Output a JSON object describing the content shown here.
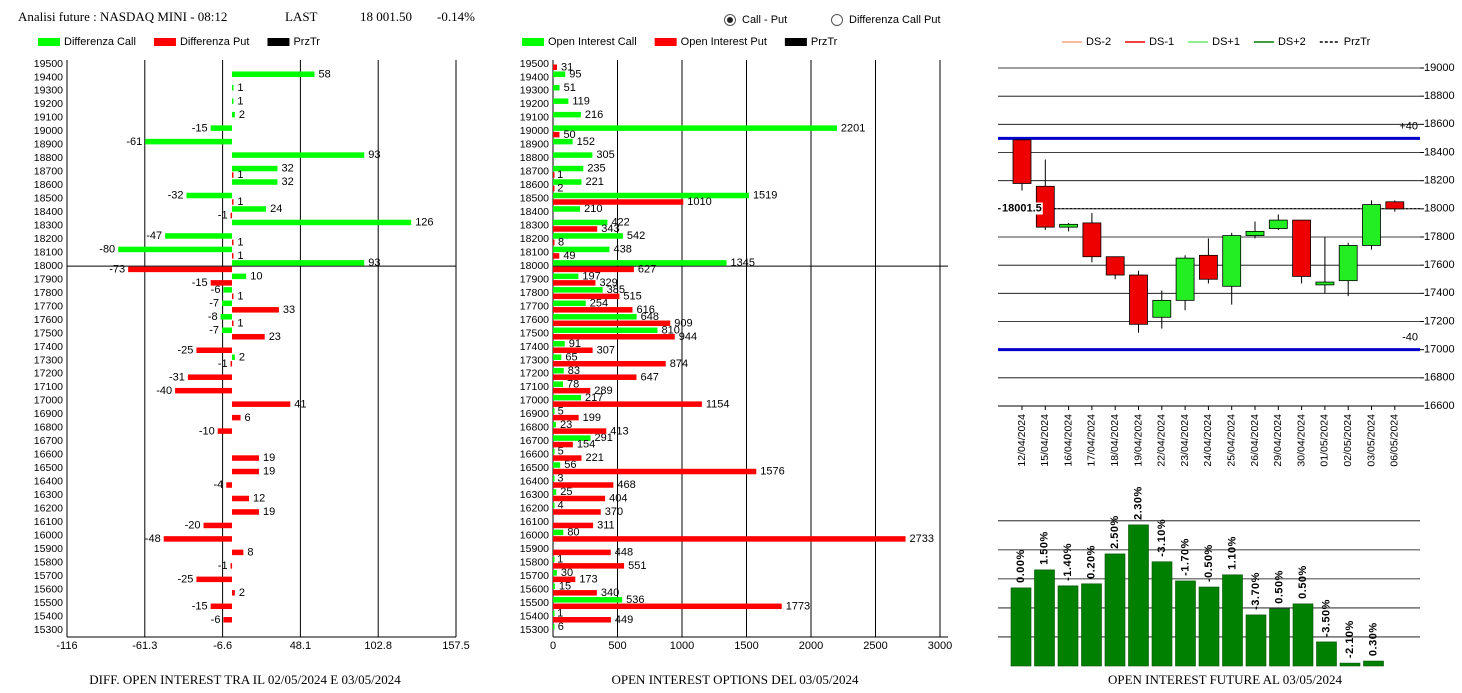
{
  "header": {
    "title": "Analisi future : NASDAQ MINI - 08:12",
    "last_label": "LAST",
    "last": "18 001.50",
    "change": "-0.14%"
  },
  "radios": [
    {
      "label": "Call - Put",
      "selected": true
    },
    {
      "label": "Differenza Call Put",
      "selected": false
    }
  ],
  "chart_data": [
    {
      "type": "hbar",
      "title": "DIFF. OPEN INTEREST TRA IL 02/05/2024 E 03/05/2024",
      "categories": [
        "19500",
        "19400",
        "19300",
        "19200",
        "19100",
        "19000",
        "18900",
        "18800",
        "18700",
        "18600",
        "18500",
        "18400",
        "18300",
        "18200",
        "18100",
        "18000",
        "17900",
        "17800",
        "17700",
        "17600",
        "17500",
        "17400",
        "17300",
        "17200",
        "17100",
        "17000",
        "16900",
        "16800",
        "16700",
        "16600",
        "16500",
        "16400",
        "16300",
        "16200",
        "16100",
        "16000",
        "15900",
        "15800",
        "15700",
        "15600",
        "15500",
        "15400",
        "15300"
      ],
      "series": [
        {
          "name": "Differenza Call",
          "color": "#00ff00",
          "values": [
            null,
            58,
            1,
            1,
            2,
            -15,
            -61,
            93,
            32,
            32,
            -32,
            24,
            126,
            -47,
            -80,
            93,
            10,
            -6,
            -7,
            -8,
            -7,
            null,
            2,
            null,
            null,
            null,
            null,
            null,
            null,
            null,
            null,
            null,
            null,
            null,
            null,
            null,
            null,
            null,
            null,
            null,
            null,
            null,
            null
          ]
        },
        {
          "name": "Differenza Put",
          "color": "#ff0000",
          "values": [
            null,
            null,
            null,
            null,
            null,
            null,
            null,
            null,
            1,
            null,
            1,
            -1,
            null,
            1,
            1,
            -73,
            -15,
            1,
            33,
            1,
            23,
            -25,
            -1,
            -31,
            -40,
            41,
            6,
            -10,
            null,
            19,
            19,
            -4,
            12,
            19,
            -20,
            -48,
            8,
            -1,
            -25,
            2,
            -15,
            -6,
            null
          ]
        }
      ],
      "price_line": {
        "name": "PrzTr",
        "color": "#000000",
        "value": 18000
      },
      "xlim": [
        -116,
        157.5
      ],
      "xticks": [
        -116,
        -61.3,
        -6.6,
        48.1,
        102.8,
        157.5
      ],
      "grid": true
    },
    {
      "type": "hbar",
      "title": "OPEN INTEREST OPTIONS DEL 03/05/2024",
      "categories": [
        "19500",
        "19400",
        "19300",
        "19200",
        "19100",
        "19000",
        "18900",
        "18800",
        "18700",
        "18600",
        "18500",
        "18400",
        "18300",
        "18200",
        "18100",
        "18000",
        "17900",
        "17800",
        "17700",
        "17600",
        "17500",
        "17400",
        "17300",
        "17200",
        "17100",
        "17000",
        "16900",
        "16800",
        "16700",
        "16600",
        "16500",
        "16400",
        "16300",
        "16200",
        "16100",
        "16000",
        "15900",
        "15800",
        "15700",
        "15600",
        "15500",
        "15400",
        "15300"
      ],
      "series": [
        {
          "name": "Open Interest Call",
          "color": "#00ff00",
          "values": [
            null,
            95,
            51,
            119,
            216,
            2201,
            152,
            305,
            235,
            221,
            1519,
            210,
            422,
            542,
            438,
            1345,
            197,
            385,
            254,
            648,
            810,
            91,
            65,
            83,
            78,
            217,
            5,
            23,
            291,
            5,
            56,
            3,
            25,
            4,
            null,
            80,
            null,
            1,
            30,
            15,
            536,
            1,
            6
          ]
        },
        {
          "name": "Open Interest Put",
          "color": "#ff0000",
          "values": [
            31,
            null,
            null,
            null,
            null,
            50,
            null,
            null,
            1,
            2,
            1010,
            null,
            343,
            8,
            49,
            627,
            329,
            515,
            616,
            909,
            944,
            307,
            874,
            647,
            289,
            1154,
            199,
            413,
            154,
            221,
            1576,
            468,
            404,
            370,
            311,
            2733,
            448,
            551,
            173,
            340,
            1773,
            449,
            null
          ]
        }
      ],
      "price_line": {
        "name": "PrzTr",
        "color": "#000000",
        "value": 18000
      },
      "xlim": [
        0,
        3000
      ],
      "xticks": [
        0,
        500,
        1000,
        1500,
        2000,
        2500,
        3000
      ],
      "grid": true
    },
    {
      "type": "candlestick",
      "categories": [
        "12/04/2024",
        "15/04/2024",
        "16/04/2024",
        "17/04/2024",
        "18/04/2024",
        "19/04/2024",
        "22/04/2024",
        "23/04/2024",
        "24/04/2024",
        "25/04/2024",
        "26/04/2024",
        "29/04/2024",
        "30/04/2024",
        "01/05/2024",
        "02/05/2024",
        "03/05/2024",
        "06/05/2024"
      ],
      "open": [
        18490,
        18160,
        17870,
        17900,
        17660,
        17530,
        17230,
        17350,
        17670,
        17450,
        17810,
        17860,
        17920,
        17460,
        17490,
        17740,
        18050
      ],
      "close": [
        18180,
        17870,
        17890,
        17660,
        17530,
        17180,
        17350,
        17650,
        17500,
        17810,
        17840,
        17920,
        17520,
        17480,
        17740,
        18030,
        18000
      ],
      "high": [
        18490,
        18350,
        17900,
        17970,
        17660,
        17560,
        17420,
        17670,
        17790,
        17830,
        17910,
        17960,
        17920,
        17800,
        17760,
        18060,
        18060
      ],
      "low": [
        18130,
        17850,
        17840,
        17620,
        17500,
        17120,
        17150,
        17280,
        17470,
        17320,
        17790,
        17850,
        17470,
        17400,
        17380,
        17710,
        17980
      ],
      "up_color": "#22ee22",
      "down_color": "#ee0000",
      "legend": [
        {
          "name": "DS-2",
          "color": "#f4a582",
          "dash": false
        },
        {
          "name": "DS-1",
          "color": "#ee0000",
          "dash": false
        },
        {
          "name": "DS+1",
          "color": "#66ee66",
          "dash": false
        },
        {
          "name": "DS+2",
          "color": "#008000",
          "dash": false
        },
        {
          "name": "PrzTr",
          "color": "#000000",
          "dash": true
        }
      ],
      "levels": [
        {
          "value": 18500,
          "label": "+40"
        },
        {
          "value": 17000,
          "label": "-40"
        }
      ],
      "level_color": "#0000cc",
      "price_line": {
        "value": 18001.5,
        "color": "#000000"
      },
      "ylim": [
        16600,
        19000
      ],
      "yticks": [
        16600,
        16800,
        17000,
        17200,
        17400,
        17600,
        17800,
        18000,
        18200,
        18400,
        18600,
        18800,
        19000
      ],
      "grid": true
    },
    {
      "type": "bar",
      "title": "OPEN INTEREST FUTURE AL 03/05/2024",
      "values": [
        2.69,
        3.31,
        2.76,
        2.83,
        3.86,
        4.86,
        3.59,
        2.93,
        2.72,
        3.14,
        1.76,
        1.97,
        2.14,
        0.83,
        0.1,
        0.17
      ],
      "change_labels": [
        "0.00%",
        "1.50%",
        "-1.40%",
        "0.20%",
        "2.50%",
        "2.30%",
        "-3.10%",
        "-1.70%",
        "-0.50%",
        "1.10%",
        "-3.70%",
        "0.50%",
        "0.50%",
        "-3.50%",
        "-2.10%",
        "0.30%"
      ],
      "color": "#008000",
      "ylim": [
        0,
        5.2
      ],
      "grid_lines": [
        1,
        2,
        3,
        4,
        5
      ]
    }
  ]
}
